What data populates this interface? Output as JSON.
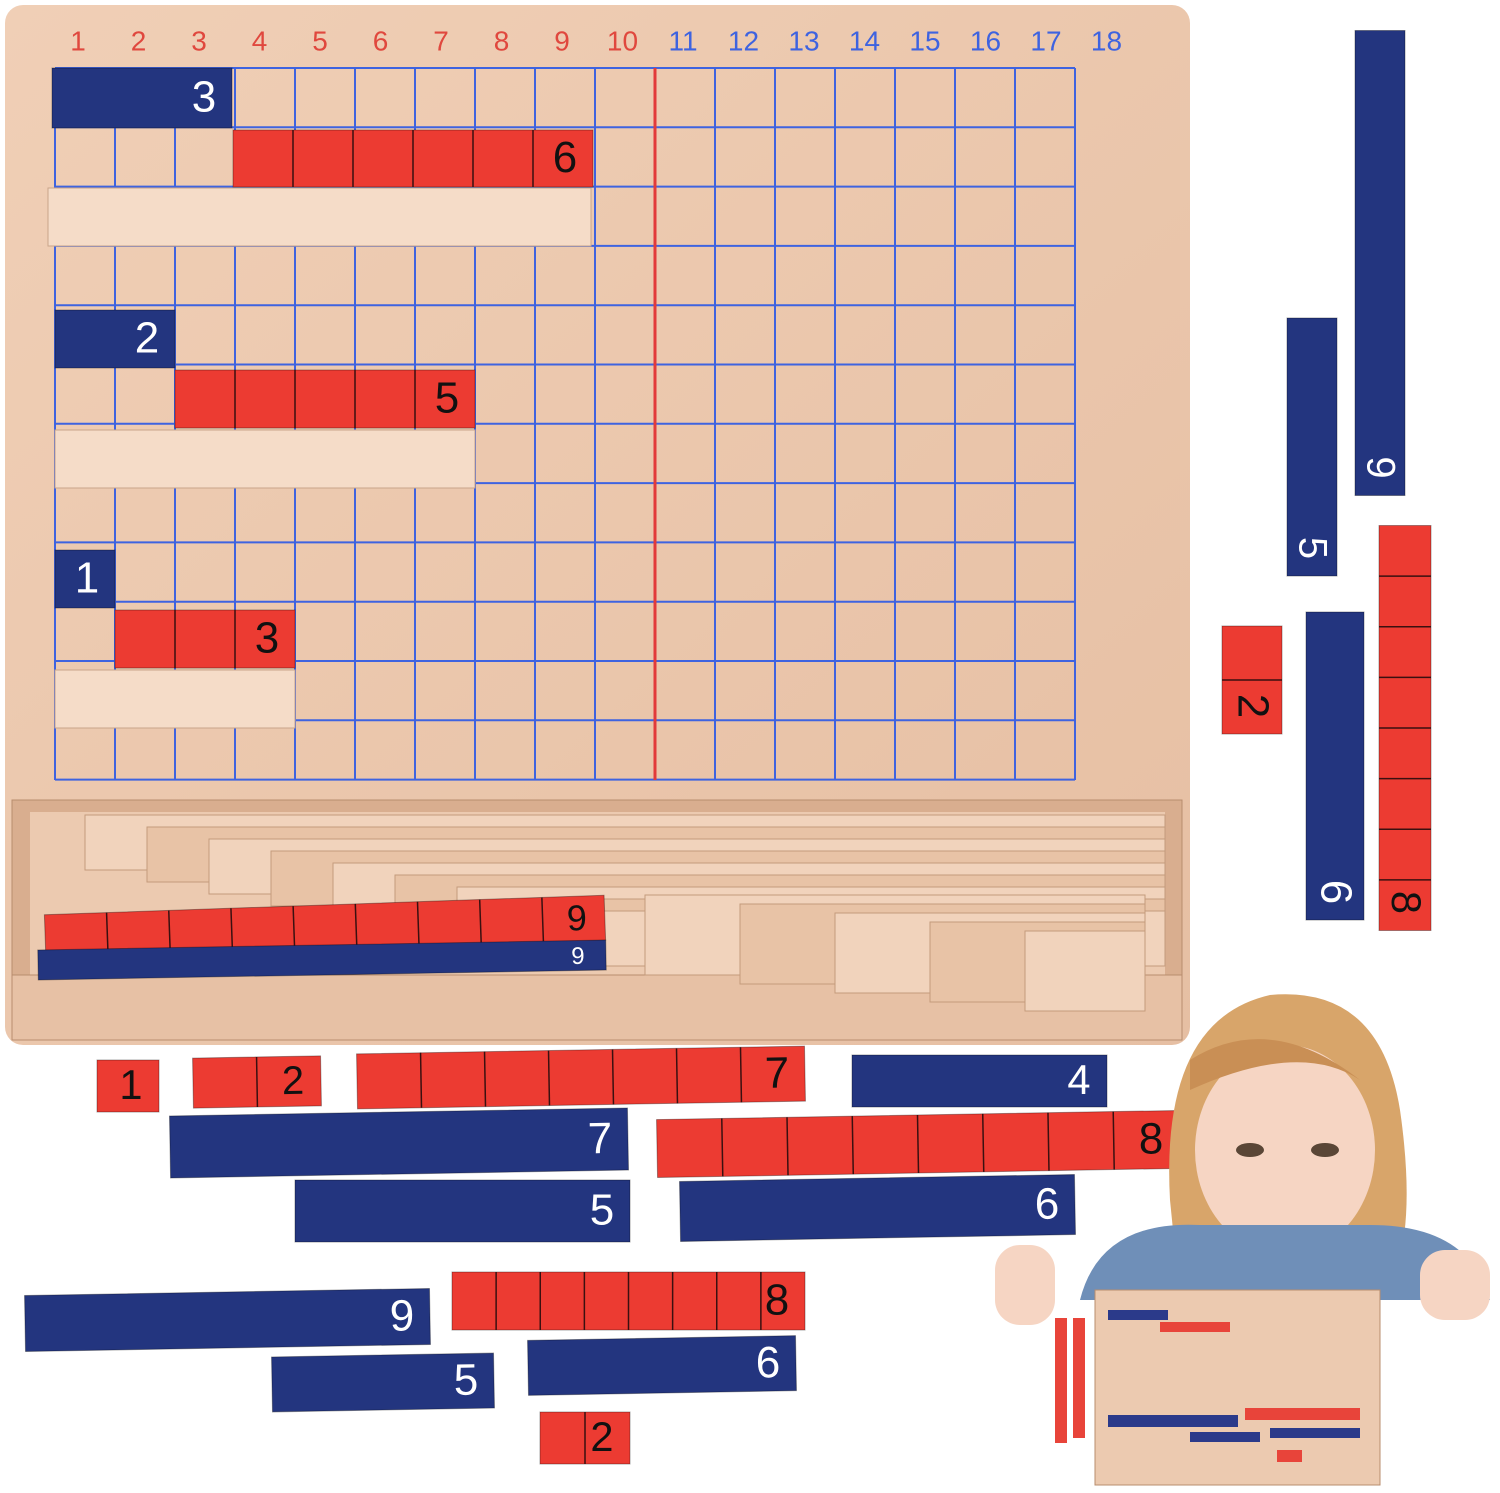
{
  "board": {
    "columns": [
      1,
      2,
      3,
      4,
      5,
      6,
      7,
      8,
      9,
      10,
      11,
      12,
      13,
      14,
      15,
      16,
      17,
      18
    ],
    "strips": [
      {
        "label": 3,
        "color": "blue"
      },
      {
        "label": 6,
        "color": "red"
      },
      {
        "label": 2,
        "color": "blue"
      },
      {
        "label": 5,
        "color": "red"
      },
      {
        "label": 1,
        "color": "blue"
      },
      {
        "label": 3,
        "color": "red"
      }
    ]
  },
  "tray_strips": [
    {
      "label": 9,
      "color": "red"
    },
    {
      "label": 9,
      "color": "blue"
    }
  ],
  "side_strips": [
    {
      "label": 9,
      "color": "blue"
    },
    {
      "label": 5,
      "color": "blue"
    },
    {
      "label": 6,
      "color": "blue"
    },
    {
      "label": 2,
      "color": "red"
    },
    {
      "label": 8,
      "color": "red"
    }
  ],
  "loose_strips": [
    {
      "label": 1,
      "color": "red"
    },
    {
      "label": 2,
      "color": "red"
    },
    {
      "label": 7,
      "color": "red"
    },
    {
      "label": 4,
      "color": "blue"
    },
    {
      "label": 7,
      "color": "blue"
    },
    {
      "label": 8,
      "color": "red"
    },
    {
      "label": 5,
      "color": "blue"
    },
    {
      "label": 6,
      "color": "blue"
    },
    {
      "label": 9,
      "color": "blue"
    },
    {
      "label": 8,
      "color": "red"
    },
    {
      "label": 5,
      "color": "blue"
    },
    {
      "label": 6,
      "color": "blue"
    },
    {
      "label": 2,
      "color": "red"
    }
  ]
}
